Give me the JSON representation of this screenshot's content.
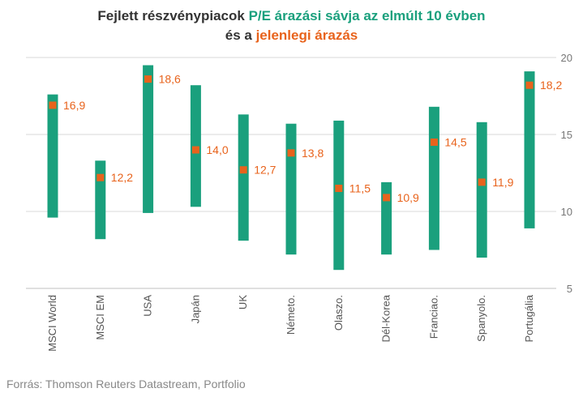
{
  "title": {
    "line1_prefix": "Fejlett részvénypiacok ",
    "line1_highlight": "P/E árazási sávja az elmúlt 10 évben",
    "line2_prefix": "és a ",
    "line2_highlight": "jelenlegi árazás"
  },
  "source": "Forrás: Thomson Reuters Datastream, Portfolio",
  "colors": {
    "band": "#1aa07d",
    "current": "#e8631c",
    "grid": "#d9d9d9",
    "axis_text": "#777777"
  },
  "chart_data": {
    "type": "range-bar",
    "categories": [
      "MSCI World",
      "MSCI EM",
      "USA",
      "Japán",
      "UK",
      "Németo.",
      "Olaszo.",
      "Dél-Korea",
      "Franciao.",
      "Spanyolo.",
      "Portugália"
    ],
    "series": [
      {
        "values_low": [
          9.6,
          8.2,
          9.9,
          10.3,
          8.1,
          7.2,
          6.2,
          7.2,
          7.5,
          7.0,
          8.9
        ],
        "values_high": [
          17.6,
          13.3,
          19.5,
          18.2,
          16.3,
          15.7,
          15.9,
          11.9,
          16.8,
          15.8,
          19.1
        ]
      },
      {
        "values": [
          16.9,
          12.2,
          18.6,
          14.0,
          12.7,
          13.8,
          11.5,
          10.9,
          14.5,
          11.9,
          18.2
        ],
        "labels": [
          "16,9",
          "12,2",
          "18,6",
          "14,0",
          "12,7",
          "13,8",
          "11,5",
          "10,9",
          "14,5",
          "11,9",
          "18,2"
        ]
      }
    ],
    "y_axis": {
      "position": "right",
      "ylim": [
        5,
        20
      ],
      "ticks": [
        5,
        10,
        15,
        20
      ]
    },
    "grid": true
  }
}
